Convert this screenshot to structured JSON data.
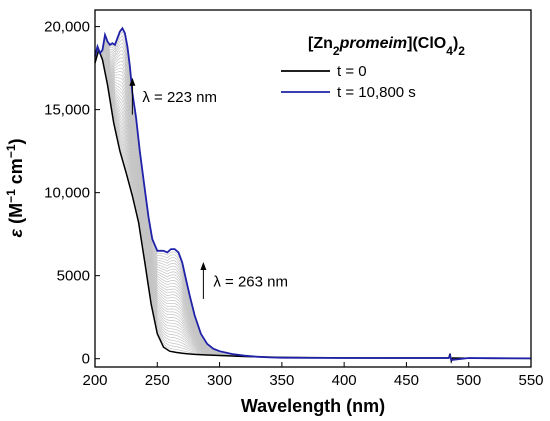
{
  "chart_data": {
    "type": "line",
    "xlabel": "Wavelength (nm)",
    "ylabel_parts": {
      "symbol": "ε",
      "open": " (M",
      "sup1": "−1",
      "mid": " cm",
      "sup2": "−1",
      "close": ")"
    },
    "xlim": [
      200,
      550
    ],
    "ylim": [
      -500,
      21000
    ],
    "x_ticks": [
      200,
      250,
      300,
      350,
      400,
      450,
      500,
      550
    ],
    "y_ticks": [
      {
        "value": 0,
        "label": "0"
      },
      {
        "value": 5000,
        "label": "5000"
      },
      {
        "value": 10000,
        "label": "10,000"
      },
      {
        "value": 15000,
        "label": "15,000"
      },
      {
        "value": 20000,
        "label": "20,000"
      }
    ],
    "legend": {
      "placement": "top-right",
      "title_parts": {
        "open": "[Zn",
        "sub1": "2",
        "italic": "promeim",
        "mid": "](ClO",
        "sub2": "4",
        "close": ")",
        "sub3": "2"
      }
    },
    "series": [
      {
        "name": "t = 0",
        "color": "#000000",
        "x": [
          200,
          203,
          206,
          210,
          215,
          220,
          225,
          230,
          235,
          240,
          245,
          250,
          255,
          260,
          265,
          270,
          275,
          280,
          290,
          300,
          320,
          350,
          400,
          450,
          484,
          485,
          486,
          487,
          500,
          550
        ],
        "y": [
          17800,
          18600,
          18000,
          16500,
          14200,
          12500,
          11200,
          9800,
          8200,
          5800,
          3300,
          1500,
          700,
          450,
          380,
          330,
          290,
          260,
          220,
          190,
          130,
          80,
          50,
          40,
          40,
          300,
          -150,
          40,
          30,
          20
        ]
      },
      {
        "name": "t = 10,800 s",
        "color": "#1f22a8",
        "x": [
          200,
          202,
          204,
          206,
          208,
          210,
          212,
          214,
          216,
          218,
          220,
          222,
          224,
          226,
          228,
          230,
          233,
          236,
          240,
          243,
          246,
          250,
          253,
          255,
          258,
          261,
          264,
          267,
          270,
          273,
          276,
          280,
          285,
          290,
          295,
          300,
          310,
          320,
          330,
          340,
          350,
          370,
          400,
          450,
          484,
          485,
          486,
          500,
          520,
          550
        ],
        "y": [
          18200,
          18800,
          18400,
          18600,
          19500,
          19100,
          18900,
          19000,
          18900,
          19300,
          19700,
          19900,
          19600,
          18800,
          17600,
          16000,
          14500,
          12500,
          10200,
          8500,
          7200,
          6500,
          6500,
          6500,
          6400,
          6600,
          6600,
          6400,
          5800,
          4800,
          3800,
          2600,
          1500,
          900,
          600,
          450,
          280,
          180,
          120,
          80,
          60,
          50,
          40,
          40,
          40,
          200,
          -80,
          40,
          30,
          20
        ]
      }
    ],
    "annotations": [
      {
        "text": "λ = 223 nm",
        "arrow_at_x": 230,
        "arrow_from_y": 14700,
        "arrow_to_y": 16800
      },
      {
        "text": "λ = 263 nm",
        "arrow_at_x": 287,
        "arrow_from_y": 3600,
        "arrow_to_y": 5700
      }
    ]
  }
}
